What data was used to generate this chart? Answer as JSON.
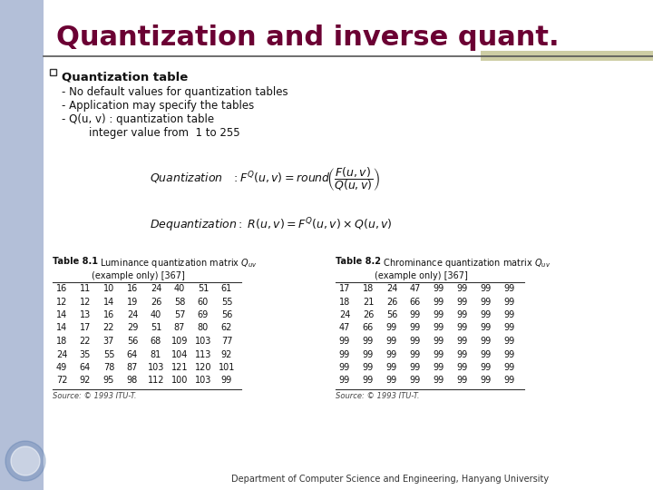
{
  "title": "Quantization and inverse quant.",
  "title_color": "#6B0033",
  "title_fontsize": 22,
  "bg_color": "#FFFFFF",
  "left_bar_color": "#8B9DC3",
  "header_line_color": "#555555",
  "accent_bar_color": "#C8C89A",
  "bullet_header": "Quantization table",
  "bullet_points": [
    "- No default values for quantization tables",
    "- Application may specify the tables",
    "- Q(u, v) : quantization table",
    "        integer value from  1 to 255"
  ],
  "quant_formula": "$\\mathit{Quantization}\\;\\;\\; : F^{Q}(u,v)= round\\!\\left(\\dfrac{F(u,v)}{Q(u,v)}\\right)$",
  "dequant_formula": "$\\mathit{Dequantization} : \\; R(u,v)= F^{Q}(u,v)\\times Q(u,v)$",
  "table1_title_bold": "Table 8.1",
  "table1_title_rest": "   Luminance quantization matrix $Q_{uv}$\n(example only) [367]",
  "table1_data": [
    [
      16,
      11,
      10,
      16,
      24,
      40,
      51,
      61
    ],
    [
      12,
      12,
      14,
      19,
      26,
      58,
      60,
      55
    ],
    [
      14,
      13,
      16,
      24,
      40,
      57,
      69,
      56
    ],
    [
      14,
      17,
      22,
      29,
      51,
      87,
      80,
      62
    ],
    [
      18,
      22,
      37,
      56,
      68,
      109,
      103,
      77
    ],
    [
      24,
      35,
      55,
      64,
      81,
      104,
      113,
      92
    ],
    [
      49,
      64,
      78,
      87,
      103,
      121,
      120,
      101
    ],
    [
      72,
      92,
      95,
      98,
      112,
      100,
      103,
      99
    ]
  ],
  "table2_title_bold": "Table 8.2",
  "table2_title_rest": "   Chrominance quantization matrix $Q_{uv}$\n(example only) [367]",
  "table2_data": [
    [
      17,
      18,
      24,
      47,
      99,
      99,
      99,
      99
    ],
    [
      18,
      21,
      26,
      66,
      99,
      99,
      99,
      99
    ],
    [
      24,
      26,
      56,
      99,
      99,
      99,
      99,
      99
    ],
    [
      47,
      66,
      99,
      99,
      99,
      99,
      99,
      99
    ],
    [
      99,
      99,
      99,
      99,
      99,
      99,
      99,
      99
    ],
    [
      99,
      99,
      99,
      99,
      99,
      99,
      99,
      99
    ],
    [
      99,
      99,
      99,
      99,
      99,
      99,
      99,
      99
    ],
    [
      99,
      99,
      99,
      99,
      99,
      99,
      99,
      99
    ]
  ],
  "source_text": "Source: © 1993 ITU-T.",
  "footer_text": "Department of Computer Science and Engineering, Hanyang University",
  "logo_color": "#4A6FA5"
}
